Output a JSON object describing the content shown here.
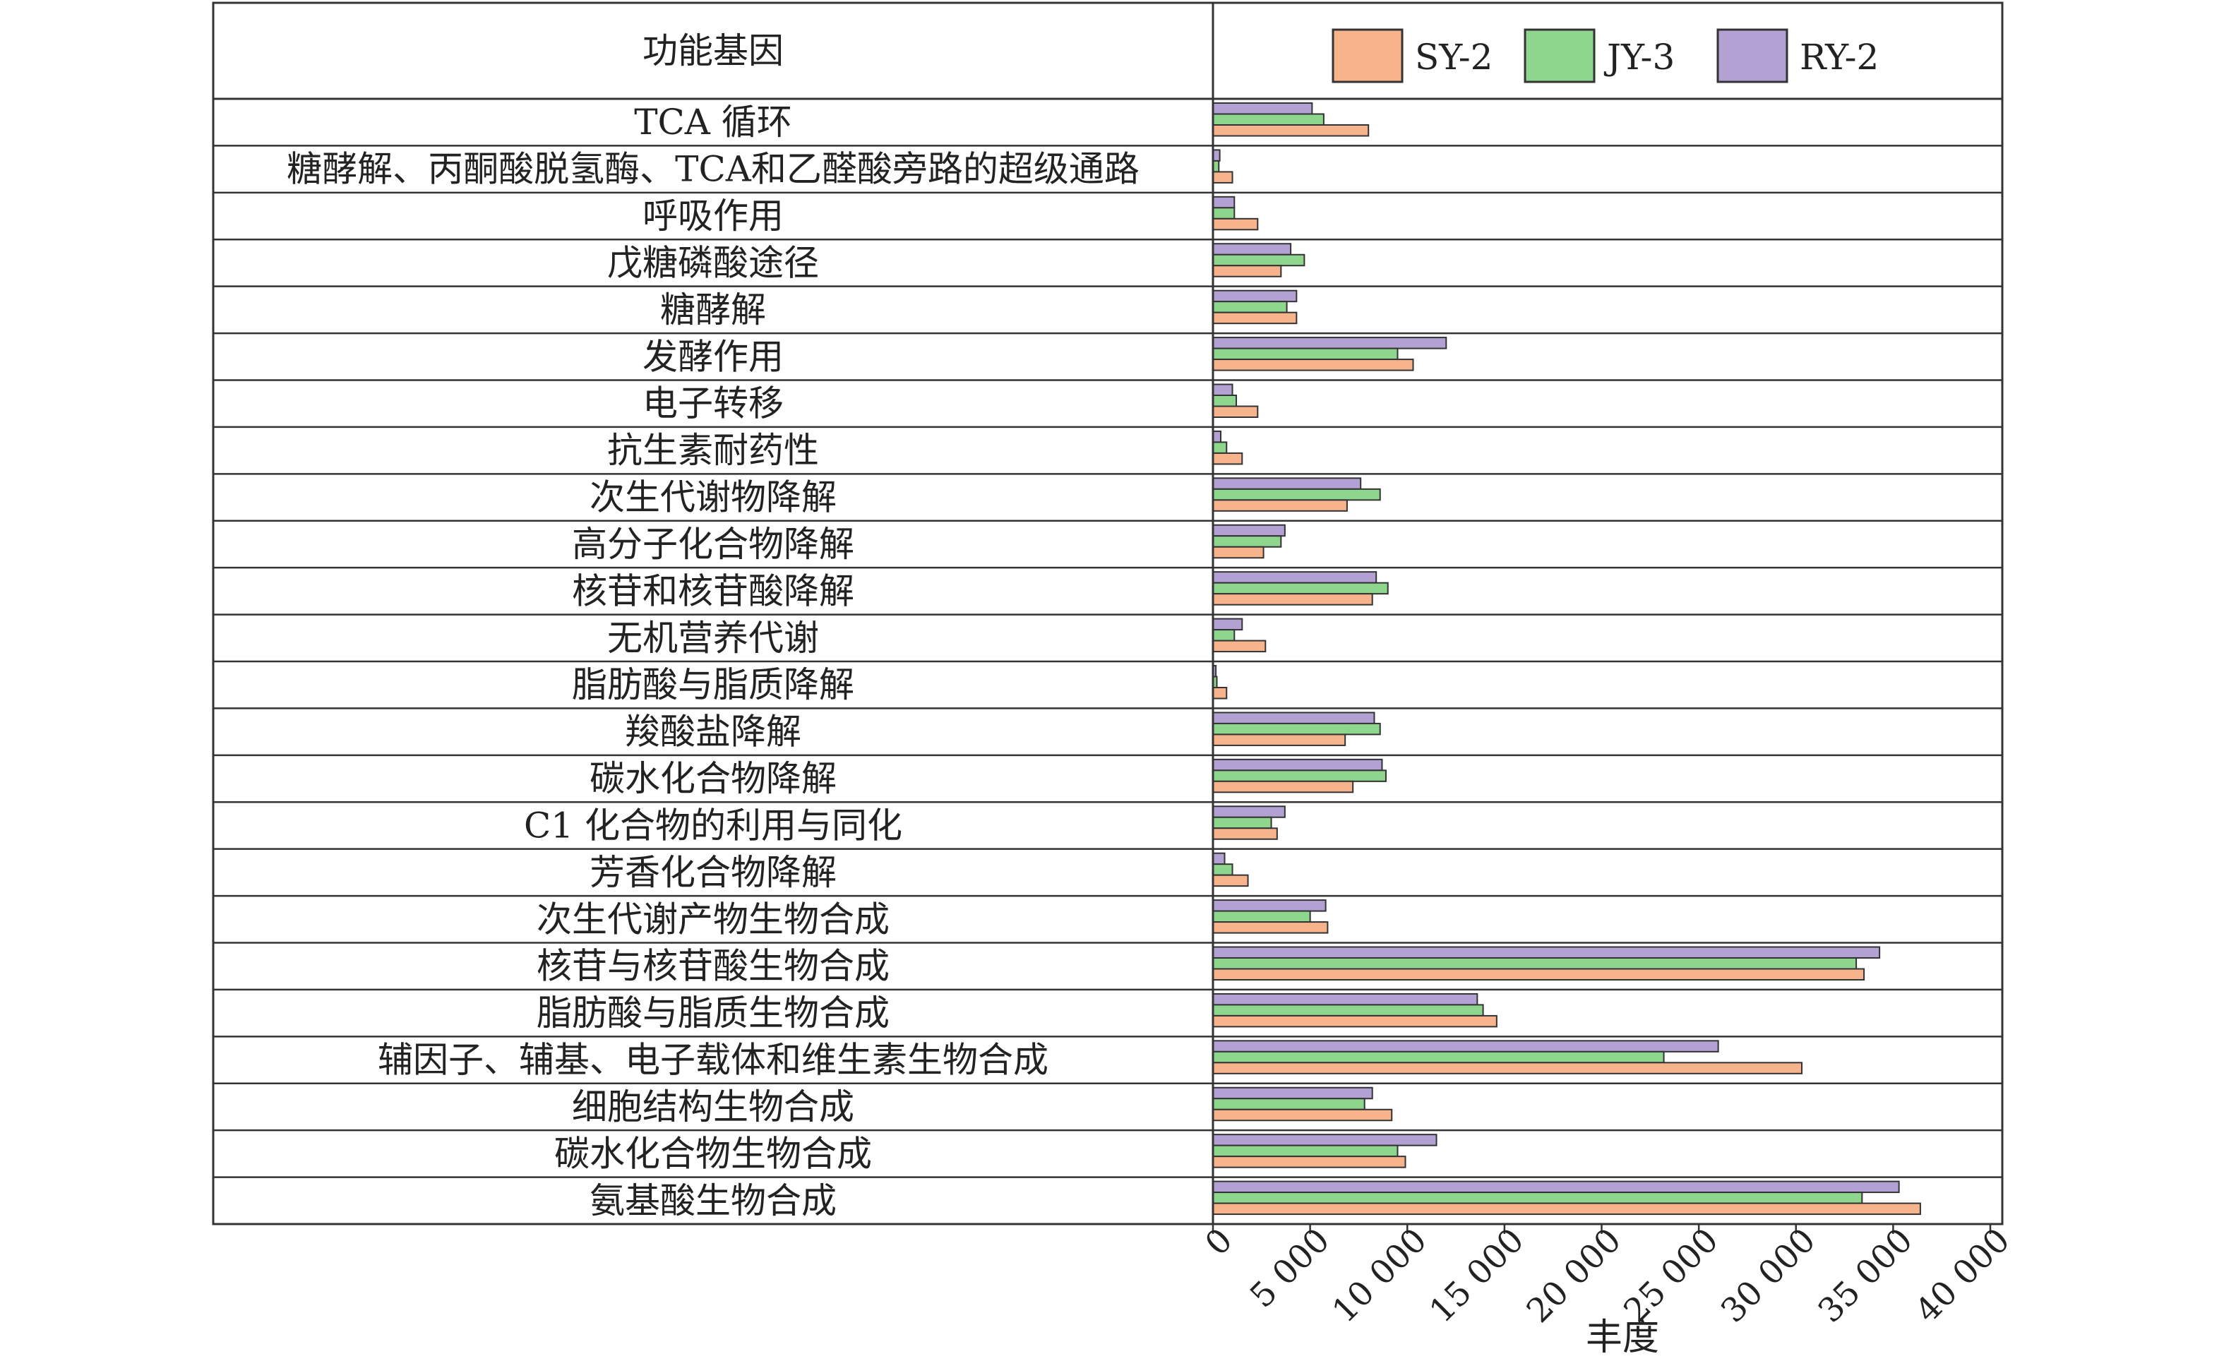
{
  "chart_data": {
    "type": "bar",
    "orientation": "horizontal",
    "header_label": "功能基因",
    "xlabel": "丰度",
    "xlim": [
      0,
      40000
    ],
    "x_ticks": [
      0,
      5000,
      10000,
      15000,
      20000,
      25000,
      30000,
      35000,
      40000
    ],
    "x_tick_labels": [
      "0",
      "5 000",
      "10 000",
      "15 000",
      "20 000",
      "25 000",
      "30 000",
      "35 000",
      "40 000"
    ],
    "grid": false,
    "legend_position": "top-right",
    "categories": [
      "TCA 循环",
      "糖酵解、丙酮酸脱氢酶、TCA和乙醛酸旁路的超级通路",
      "呼吸作用",
      "戊糖磷酸途径",
      "糖酵解",
      "发酵作用",
      "电子转移",
      "抗生素耐药性",
      "次生代谢物降解",
      "高分子化合物降解",
      "核苷和核苷酸降解",
      "无机营养代谢",
      "脂肪酸与脂质降解",
      "羧酸盐降解",
      "碳水化合物降解",
      "C1 化合物的利用与同化",
      "芳香化合物降解",
      "次生代谢产物生物合成",
      "核苷与核苷酸生物合成",
      "脂肪酸与脂质生物合成",
      "辅因子、辅基、电子载体和维生素生物合成",
      "细胞结构生物合成",
      "碳水化合物生物合成",
      "氨基酸生物合成"
    ],
    "series": [
      {
        "name": "RY-2",
        "color": "#b3a1d4",
        "values": [
          5100,
          350,
          1100,
          4000,
          4300,
          12000,
          1000,
          400,
          7600,
          3700,
          8400,
          1500,
          150,
          8300,
          8700,
          3700,
          600,
          5800,
          34300,
          13600,
          26000,
          8200,
          11500,
          35300
        ]
      },
      {
        "name": "JY-3",
        "color": "#8ed68d",
        "values": [
          5700,
          300,
          1100,
          4700,
          3800,
          9500,
          1200,
          700,
          8600,
          3500,
          9000,
          1100,
          200,
          8600,
          8900,
          3000,
          1000,
          5000,
          33100,
          13900,
          23200,
          7800,
          9500,
          33400
        ]
      },
      {
        "name": "SY-2",
        "color": "#f7b48c",
        "values": [
          8000,
          1000,
          2300,
          3500,
          4300,
          10300,
          2300,
          1500,
          6900,
          2600,
          8200,
          2700,
          700,
          6800,
          7200,
          3300,
          1800,
          5900,
          33500,
          14600,
          30300,
          9200,
          9900,
          36400
        ]
      }
    ],
    "legend_order": [
      "SY-2",
      "JY-3",
      "RY-2"
    ]
  }
}
